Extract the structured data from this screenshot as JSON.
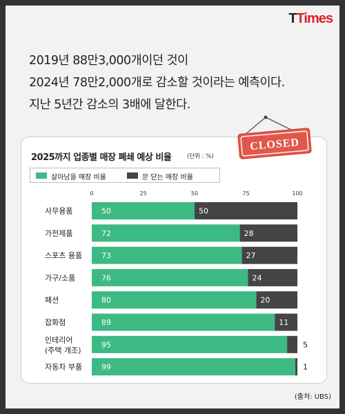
{
  "logo": {
    "part1": "T",
    "part2": "Times"
  },
  "intro": {
    "lines": [
      "2019년 88만3,000개이던 것이",
      "2024년 78만2,000개로 감소할 것이라는 예측이다.",
      "지난 5년간 감소의 3배에 달한다."
    ]
  },
  "sign": {
    "text": "CLOSED"
  },
  "source": "(출처: UBS)",
  "chart_data": {
    "type": "bar",
    "orientation": "horizontal",
    "stacked": true,
    "title": "2025까지 업종별 매장 폐쇄 예상 비율",
    "unit": "(단위 : %)",
    "categories": [
      "사무용품",
      "가전제품",
      "스포츠 용품",
      "가구/소품",
      "패션",
      "잡화점",
      "인테리어\n(주택 개조)",
      "자동차 부품"
    ],
    "series": [
      {
        "name": "살아남을 매장 비율",
        "color": "#3dba83",
        "values": [
          50,
          72,
          73,
          76,
          80,
          89,
          95,
          99
        ]
      },
      {
        "name": "문 닫는 매장 비율",
        "color": "#444444",
        "values": [
          50,
          28,
          27,
          24,
          20,
          11,
          5,
          1
        ]
      }
    ],
    "xlim": [
      0,
      100
    ],
    "xticks": [
      0,
      25,
      50,
      75,
      100
    ],
    "legend_position": "top-left",
    "grid": false
  }
}
